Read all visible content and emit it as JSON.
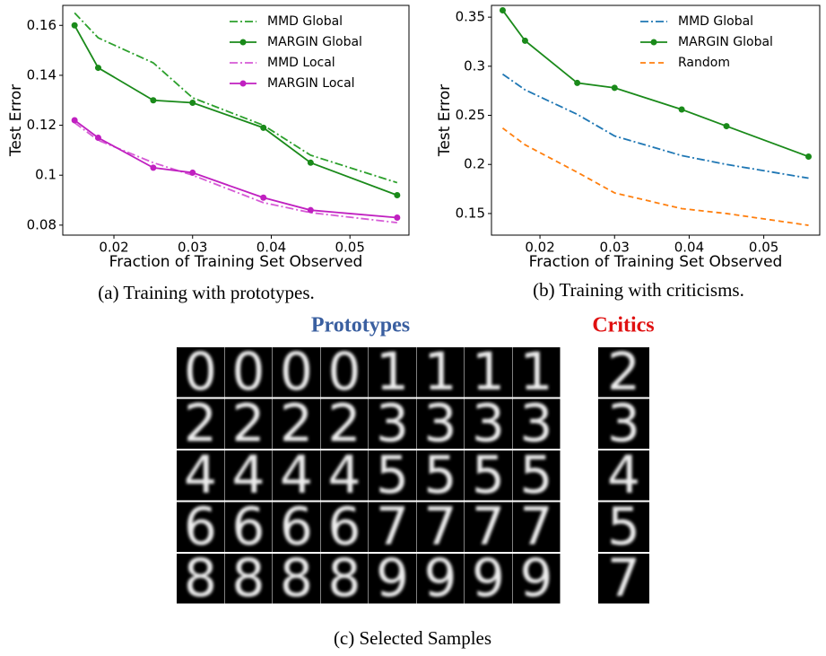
{
  "chart_data": [
    {
      "type": "line",
      "xlabel": "Fraction of Training Set Observed",
      "ylabel": "Test Error",
      "x": [
        0.015,
        0.018,
        0.025,
        0.03,
        0.039,
        0.045,
        0.056
      ],
      "xlim": [
        0.0135,
        0.0575
      ],
      "xticks": [
        0.02,
        0.03,
        0.04,
        0.05
      ],
      "ylim": [
        0.076,
        0.168
      ],
      "yticks": [
        0.08,
        0.1,
        0.12,
        0.14,
        0.16
      ],
      "legend": "upper right",
      "series": [
        {
          "name": "MMD Global",
          "color": "#2ca02c",
          "linestyle": "dashdot",
          "marker": false,
          "values": [
            0.165,
            0.155,
            0.145,
            0.131,
            0.12,
            0.108,
            0.097
          ]
        },
        {
          "name": "MARGIN Global",
          "color": "#1a8a1a",
          "linestyle": "solid",
          "marker": true,
          "values": [
            0.16,
            0.143,
            0.13,
            0.129,
            0.119,
            0.105,
            0.092
          ]
        },
        {
          "name": "MMD Local",
          "color": "#d65bd6",
          "linestyle": "dashdot",
          "marker": false,
          "values": [
            0.121,
            0.114,
            0.105,
            0.1,
            0.089,
            0.085,
            0.081
          ]
        },
        {
          "name": "MARGIN Local",
          "color": "#c020c0",
          "linestyle": "solid",
          "marker": true,
          "values": [
            0.122,
            0.115,
            0.103,
            0.101,
            0.091,
            0.086,
            0.083
          ]
        }
      ]
    },
    {
      "type": "line",
      "xlabel": "Fraction of Training Set Observed",
      "ylabel": "Test Error",
      "x": [
        0.015,
        0.018,
        0.025,
        0.03,
        0.039,
        0.045,
        0.056
      ],
      "xlim": [
        0.0135,
        0.0575
      ],
      "xticks": [
        0.02,
        0.03,
        0.04,
        0.05
      ],
      "ylim": [
        0.128,
        0.362
      ],
      "yticks": [
        0.15,
        0.2,
        0.25,
        0.3,
        0.35
      ],
      "legend": "upper right",
      "series": [
        {
          "name": "MMD Global",
          "color": "#1f77b4",
          "linestyle": "dashdot",
          "marker": false,
          "values": [
            0.292,
            0.276,
            0.251,
            0.229,
            0.209,
            0.2,
            0.186
          ]
        },
        {
          "name": "MARGIN Global",
          "color": "#1a8a1a",
          "linestyle": "solid",
          "marker": true,
          "values": [
            0.357,
            0.326,
            0.283,
            0.278,
            0.256,
            0.239,
            0.208
          ]
        },
        {
          "name": "Random",
          "color": "#ff7f0e",
          "linestyle": "dashed",
          "marker": false,
          "values": [
            0.237,
            0.22,
            0.192,
            0.171,
            0.155,
            0.15,
            0.138
          ]
        }
      ]
    }
  ],
  "captions": [
    "(a) Training with prototypes.",
    "(b) Training with criticisms.",
    "(c) Selected Samples"
  ],
  "samples": {
    "prototypes_label": "Prototypes",
    "critics_label": "Critics",
    "prototypes": [
      [
        "0",
        "0",
        "0",
        "0",
        "1",
        "1",
        "1",
        "1"
      ],
      [
        "2",
        "2",
        "2",
        "2",
        "3",
        "3",
        "3",
        "3"
      ],
      [
        "4",
        "4",
        "4",
        "4",
        "5",
        "5",
        "5",
        "5"
      ],
      [
        "6",
        "6",
        "6",
        "6",
        "7",
        "7",
        "7",
        "7"
      ],
      [
        "8",
        "8",
        "8",
        "8",
        "9",
        "9",
        "9",
        "9"
      ]
    ],
    "critics": [
      "2",
      "3",
      "4",
      "5",
      "7"
    ]
  }
}
